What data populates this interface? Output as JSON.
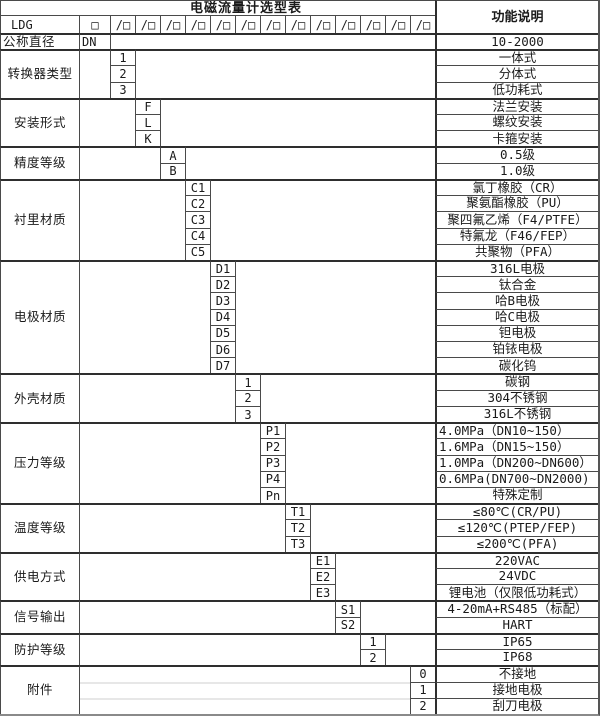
{
  "table": {
    "title": "电磁流量计选型表",
    "function_header": "功能说明",
    "model": {
      "prefix": "LDG",
      "first_box": "□",
      "slot_box": "/□",
      "slot_count": 13
    },
    "diameter": {
      "label": "公称直径",
      "code": "DN",
      "desc": "10-2000"
    }
  },
  "colors": {
    "border": "#4a4a4a",
    "text": "#1a1a1a",
    "background": "#ffffff"
  },
  "groups": [
    {
      "label": "转换器类型",
      "options": [
        {
          "code": "1",
          "desc": "一体式"
        },
        {
          "code": "2",
          "desc": "分体式"
        },
        {
          "code": "3",
          "desc": "低功耗式"
        }
      ]
    },
    {
      "label": "安装形式",
      "options": [
        {
          "code": "F",
          "desc": "法兰安装"
        },
        {
          "code": "L",
          "desc": "螺纹安装"
        },
        {
          "code": "K",
          "desc": "卡箍安装"
        }
      ]
    },
    {
      "label": "精度等级",
      "options": [
        {
          "code": "A",
          "desc": "0.5级"
        },
        {
          "code": "B",
          "desc": "1.0级"
        }
      ]
    },
    {
      "label": "衬里材质",
      "options": [
        {
          "code": "C1",
          "desc": "氯丁橡胶（CR）"
        },
        {
          "code": "C2",
          "desc": "聚氨酯橡胶（PU）"
        },
        {
          "code": "C3",
          "desc": "聚四氟乙烯（F4/PTFE）"
        },
        {
          "code": "C4",
          "desc": "特氟龙（F46/FEP）"
        },
        {
          "code": "C5",
          "desc": "共聚物（PFA）"
        }
      ]
    },
    {
      "label": "电极材质",
      "options": [
        {
          "code": "D1",
          "desc": "316L电极"
        },
        {
          "code": "D2",
          "desc": "钛合金"
        },
        {
          "code": "D3",
          "desc": "哈B电极"
        },
        {
          "code": "D4",
          "desc": "哈C电极"
        },
        {
          "code": "D5",
          "desc": "钽电极"
        },
        {
          "code": "D6",
          "desc": "铂铱电极"
        },
        {
          "code": "D7",
          "desc": "碳化钨"
        }
      ]
    },
    {
      "label": "外壳材质",
      "options": [
        {
          "code": "1",
          "desc": "碳钢"
        },
        {
          "code": "2",
          "desc": "304不锈钢"
        },
        {
          "code": "3",
          "desc": "316L不锈钢"
        }
      ]
    },
    {
      "label": "压力等级",
      "options": [
        {
          "code": "P1",
          "desc": "4.0MPa（DN10~150）",
          "align": "left"
        },
        {
          "code": "P2",
          "desc": "1.6MPa（DN15~150）",
          "align": "left"
        },
        {
          "code": "P3",
          "desc": "1.0MPa（DN200~DN600）",
          "align": "left"
        },
        {
          "code": "P4",
          "desc": "0.6MPa(DN700~DN2000)",
          "align": "left"
        },
        {
          "code": "Pn",
          "desc": "特殊定制"
        }
      ]
    },
    {
      "label": "温度等级",
      "options": [
        {
          "code": "T1",
          "desc": "≤80℃(CR/PU)"
        },
        {
          "code": "T2",
          "desc": "≤120℃(PTEP/FEP)"
        },
        {
          "code": "T3",
          "desc": "≤200℃(PFA)"
        }
      ]
    },
    {
      "label": "供电方式",
      "options": [
        {
          "code": "E1",
          "desc": "220VAC"
        },
        {
          "code": "E2",
          "desc": "24VDC"
        },
        {
          "code": "E3",
          "desc": "锂电池（仅限低功耗式）"
        }
      ]
    },
    {
      "label": "信号输出",
      "options": [
        {
          "code": "S1",
          "desc": "4-20mA+RS485（标配）"
        },
        {
          "code": "S2",
          "desc": "HART"
        }
      ]
    },
    {
      "label": "防护等级",
      "options": [
        {
          "code": "1",
          "desc": "IP65"
        },
        {
          "code": "2",
          "desc": "IP68"
        }
      ]
    },
    {
      "label": "附件",
      "options": [
        {
          "code": "0",
          "desc": "不接地"
        },
        {
          "code": "1",
          "desc": "接地电极"
        },
        {
          "code": "2",
          "desc": "刮刀电极"
        }
      ]
    }
  ]
}
